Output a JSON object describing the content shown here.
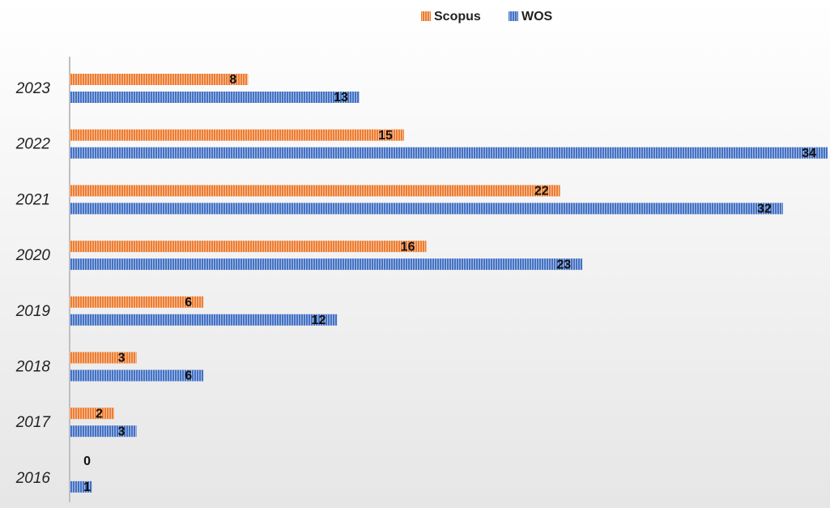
{
  "chart_data": {
    "type": "barh",
    "categories": [
      "2023",
      "2022",
      "2021",
      "2020",
      "2019",
      "2018",
      "2017",
      "2016"
    ],
    "series": [
      {
        "name": "Scopus",
        "color": "#ED7D31",
        "values": [
          8,
          15,
          22,
          16,
          6,
          3,
          2,
          0
        ]
      },
      {
        "name": "WOS",
        "color": "#4472C4",
        "values": [
          13,
          34,
          32,
          23,
          12,
          6,
          3,
          1
        ]
      }
    ],
    "xlim": [
      0,
      34
    ],
    "legend": "top"
  }
}
